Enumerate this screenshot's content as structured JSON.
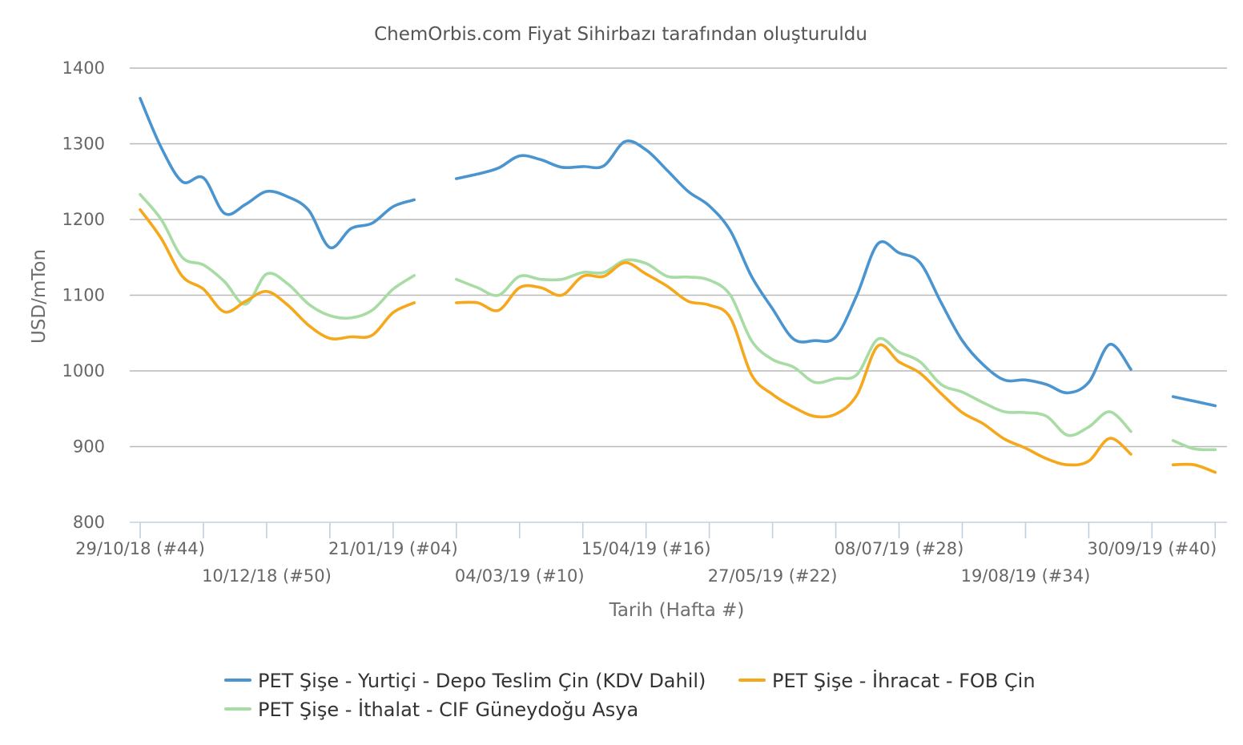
{
  "chart_data": {
    "type": "line",
    "title": "ChemOrbis.com Fiyat Sihirbazı tarafından oluşturuldu",
    "xlabel": "Tarih (Hafta #)",
    "ylabel": "USD/mTon",
    "ylim": [
      800,
      1400
    ],
    "yticks": [
      800,
      900,
      1000,
      1100,
      1200,
      1300,
      1400
    ],
    "grid": true,
    "legend_position": "bottom",
    "x_unit": "weeks starting 29/10/18 (#44)",
    "x_tick_labels": [
      {
        "week": 0,
        "label": "29/10/18 (#44)",
        "row": 0
      },
      {
        "week": 6,
        "label": "10/12/18 (#50)",
        "row": 1
      },
      {
        "week": 12,
        "label": "21/01/19 (#04)",
        "row": 0
      },
      {
        "week": 18,
        "label": "04/03/19 (#10)",
        "row": 1
      },
      {
        "week": 24,
        "label": "15/04/19 (#16)",
        "row": 0
      },
      {
        "week": 30,
        "label": "27/05/19 (#22)",
        "row": 1
      },
      {
        "week": 36,
        "label": "08/07/19 (#28)",
        "row": 0
      },
      {
        "week": 42,
        "label": "19/08/19 (#34)",
        "row": 1
      },
      {
        "week": 48,
        "label": "30/09/19 (#40)",
        "row": 0
      }
    ],
    "series": [
      {
        "name": "PET Şişe - Yurtiçi - Depo Teslim Çin (KDV Dahil)",
        "color": "#4a95cf",
        "segments": [
          [
            [
              0,
              1360
            ],
            [
              1,
              1295
            ],
            [
              2,
              1250
            ],
            [
              3,
              1255
            ],
            [
              4,
              1208
            ],
            [
              5,
              1220
            ],
            [
              6,
              1237
            ],
            [
              7,
              1230
            ],
            [
              8,
              1212
            ],
            [
              9,
              1163
            ],
            [
              10,
              1188
            ],
            [
              11,
              1195
            ],
            [
              12,
              1217
            ],
            [
              13,
              1226
            ]
          ],
          [
            [
              15,
              1254
            ],
            [
              16,
              1260
            ],
            [
              17,
              1268
            ],
            [
              18,
              1284
            ],
            [
              19,
              1279
            ],
            [
              20,
              1269
            ],
            [
              21,
              1270
            ],
            [
              22,
              1271
            ],
            [
              23,
              1303
            ],
            [
              24,
              1292
            ],
            [
              25,
              1265
            ],
            [
              26,
              1237
            ],
            [
              27,
              1218
            ],
            [
              28,
              1185
            ],
            [
              29,
              1125
            ],
            [
              30,
              1082
            ],
            [
              31,
              1042
            ],
            [
              32,
              1040
            ],
            [
              33,
              1045
            ],
            [
              34,
              1100
            ],
            [
              35,
              1168
            ],
            [
              36,
              1156
            ],
            [
              37,
              1143
            ],
            [
              38,
              1090
            ],
            [
              39,
              1040
            ],
            [
              40,
              1008
            ],
            [
              41,
              988
            ],
            [
              42,
              988
            ],
            [
              43,
              982
            ],
            [
              44,
              971
            ],
            [
              45,
              985
            ],
            [
              46,
              1035
            ],
            [
              47,
              1002
            ]
          ],
          [
            [
              49,
              966
            ],
            [
              50,
              960
            ],
            [
              51,
              954
            ]
          ]
        ]
      },
      {
        "name": "PET Şişe - İhracat - FOB Çin",
        "color": "#f5a81b",
        "segments": [
          [
            [
              0,
              1213
            ],
            [
              1,
              1175
            ],
            [
              2,
              1125
            ],
            [
              3,
              1108
            ],
            [
              4,
              1078
            ],
            [
              5,
              1092
            ],
            [
              6,
              1105
            ],
            [
              7,
              1087
            ],
            [
              8,
              1060
            ],
            [
              9,
              1043
            ],
            [
              10,
              1045
            ],
            [
              11,
              1047
            ],
            [
              12,
              1077
            ],
            [
              13,
              1090
            ]
          ],
          [
            [
              15,
              1090
            ],
            [
              16,
              1090
            ],
            [
              17,
              1080
            ],
            [
              18,
              1110
            ],
            [
              19,
              1110
            ],
            [
              20,
              1100
            ],
            [
              21,
              1125
            ],
            [
              22,
              1125
            ],
            [
              23,
              1143
            ],
            [
              24,
              1128
            ],
            [
              25,
              1112
            ],
            [
              26,
              1092
            ],
            [
              27,
              1087
            ],
            [
              28,
              1070
            ],
            [
              29,
              995
            ],
            [
              30,
              969
            ],
            [
              31,
              952
            ],
            [
              32,
              940
            ],
            [
              33,
              943
            ],
            [
              34,
              968
            ],
            [
              35,
              1033
            ],
            [
              36,
              1012
            ],
            [
              37,
              997
            ],
            [
              38,
              970
            ],
            [
              39,
              945
            ],
            [
              40,
              930
            ],
            [
              41,
              910
            ],
            [
              42,
              898
            ],
            [
              43,
              884
            ],
            [
              44,
              876
            ],
            [
              45,
              881
            ],
            [
              46,
              911
            ],
            [
              47,
              890
            ]
          ],
          [
            [
              49,
              876
            ],
            [
              50,
              876
            ],
            [
              51,
              866
            ]
          ]
        ]
      },
      {
        "name": "PET Şişe - İthalat - CIF Güneydoğu Asya",
        "color": "#a7dca4",
        "segments": [
          [
            [
              0,
              1233
            ],
            [
              1,
              1200
            ],
            [
              2,
              1150
            ],
            [
              3,
              1140
            ],
            [
              4,
              1118
            ],
            [
              5,
              1088
            ],
            [
              6,
              1128
            ],
            [
              7,
              1115
            ],
            [
              8,
              1088
            ],
            [
              9,
              1073
            ],
            [
              10,
              1070
            ],
            [
              11,
              1080
            ],
            [
              12,
              1108
            ],
            [
              13,
              1126
            ]
          ],
          [
            [
              15,
              1121
            ],
            [
              16,
              1110
            ],
            [
              17,
              1100
            ],
            [
              18,
              1125
            ],
            [
              19,
              1121
            ],
            [
              20,
              1121
            ],
            [
              21,
              1130
            ],
            [
              22,
              1130
            ],
            [
              23,
              1146
            ],
            [
              24,
              1142
            ],
            [
              25,
              1125
            ],
            [
              26,
              1124
            ],
            [
              27,
              1120
            ],
            [
              28,
              1100
            ],
            [
              29,
              1040
            ],
            [
              30,
              1015
            ],
            [
              31,
              1005
            ],
            [
              32,
              985
            ],
            [
              33,
              990
            ],
            [
              34,
              995
            ],
            [
              35,
              1042
            ],
            [
              36,
              1025
            ],
            [
              37,
              1012
            ],
            [
              38,
              982
            ],
            [
              39,
              972
            ],
            [
              40,
              958
            ],
            [
              41,
              946
            ],
            [
              42,
              945
            ],
            [
              43,
              940
            ],
            [
              44,
              915
            ],
            [
              45,
              926
            ],
            [
              46,
              946
            ],
            [
              47,
              920
            ]
          ],
          [
            [
              49,
              908
            ],
            [
              50,
              897
            ],
            [
              51,
              896
            ]
          ]
        ]
      }
    ]
  }
}
